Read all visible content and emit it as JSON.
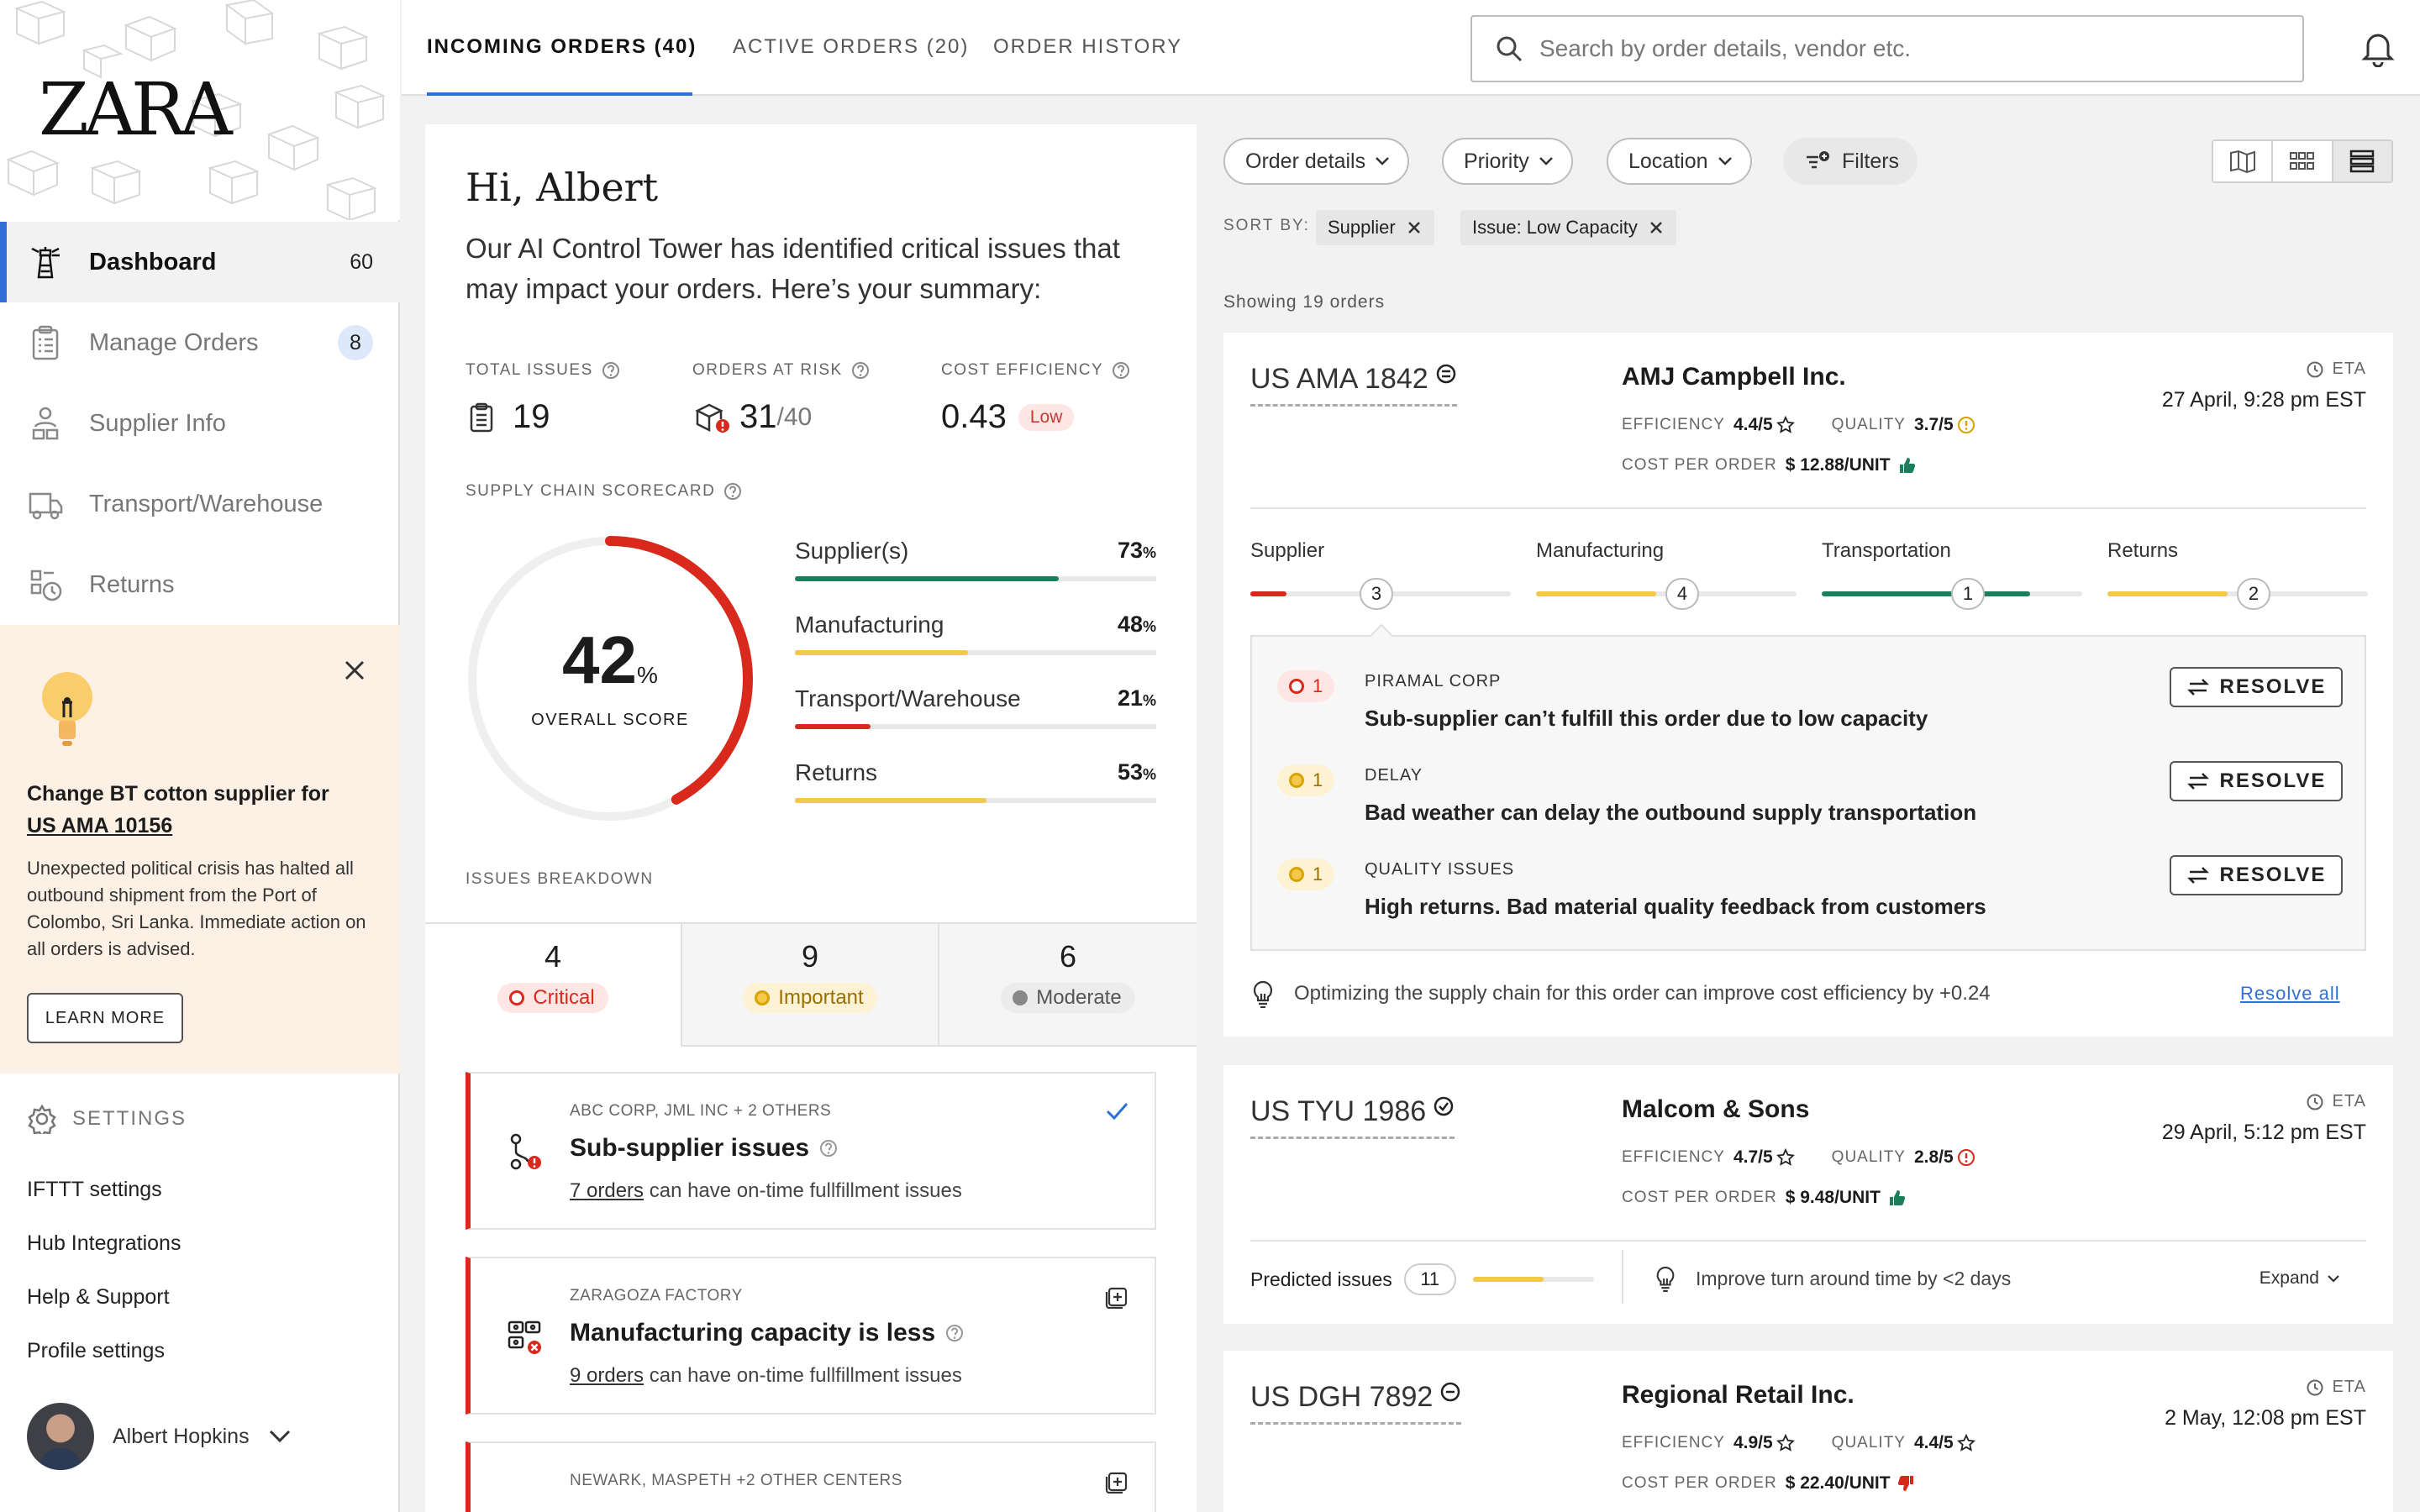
{
  "brand": {
    "logo": "ZARA"
  },
  "nav": [
    {
      "label": "Dashboard",
      "count": "60",
      "icon": "lighthouse-icon",
      "active": true
    },
    {
      "label": "Manage Orders",
      "count": "8",
      "icon": "clipboard-icon"
    },
    {
      "label": "Supplier Info",
      "count": "",
      "icon": "supplier-icon"
    },
    {
      "label": "Transport/Warehouse",
      "count": "",
      "icon": "truck-icon"
    },
    {
      "label": "Returns",
      "count": "",
      "icon": "returns-icon"
    }
  ],
  "alert": {
    "title": "Change BT cotton supplier for",
    "order_link": "US AMA 10156",
    "body": "Unexpected political crisis has halted all outbound shipment from the Port of Colombo, Sri Lanka. Immediate action on all orders is advised.",
    "button": "LEARN MORE"
  },
  "settings": {
    "heading": "SETTINGS",
    "links": [
      "IFTTT settings",
      "Hub Integrations",
      "Help & Support",
      "Profile settings"
    ]
  },
  "profile": {
    "name": "Albert Hopkins"
  },
  "tabs": [
    {
      "label": "INCOMING ORDERS (40)",
      "active": true
    },
    {
      "label": "ACTIVE ORDERS (20)"
    },
    {
      "label": "ORDER HISTORY"
    }
  ],
  "search": {
    "placeholder": "Search by order details, vendor etc."
  },
  "summary": {
    "greeting": "Hi, Albert",
    "subtitle": "Our AI Control Tower has identified critical issues that may impact your orders. Here’s your summary:",
    "kpis": {
      "total_issues_label": "TOTAL ISSUES",
      "total_issues": "19",
      "at_risk_label": "ORDERS AT RISK",
      "at_risk": "31",
      "at_risk_total": "/40",
      "cost_label": "COST EFFICIENCY",
      "cost": "0.43",
      "cost_badge": "Low"
    },
    "scorecard_label": "SUPPLY CHAIN SCORECARD",
    "overall_score": "42",
    "overall_unit": "%",
    "overall_label": "OVERALL SCORE",
    "overall_fraction": 0.42,
    "bars": [
      {
        "name": "Supplier(s)",
        "value": "73",
        "fraction": 0.73,
        "color": "#1b7f5c"
      },
      {
        "name": "Manufacturing",
        "value": "48",
        "fraction": 0.48,
        "color": "#f2c94c"
      },
      {
        "name": "Transport/Warehouse",
        "value": "21",
        "fraction": 0.21,
        "color": "#d9291c"
      },
      {
        "name": "Returns",
        "value": "53",
        "fraction": 0.53,
        "color": "#f2c94c"
      }
    ],
    "pct": "%",
    "issues_breakdown_label": "ISSUES BREAKDOWN",
    "breakdown": [
      {
        "count": "4",
        "label": "Critical",
        "color": "#d9291c",
        "bg": "#fde6e3"
      },
      {
        "count": "9",
        "label": "Important",
        "color": "#b8860b",
        "bg": "#fdf3d4"
      },
      {
        "count": "6",
        "label": "Moderate",
        "color": "#555555",
        "bg": "#ececec"
      }
    ],
    "issues": [
      {
        "meta": "ABC CORP, JML INC + 2 OTHERS",
        "title": "Sub-supplier issues",
        "link": "7 orders",
        "desc": " can have on-time fullfillment issues"
      },
      {
        "meta": "ZARAGOZA FACTORY",
        "title": "Manufacturing capacity is less",
        "link": "9 orders",
        "desc": " can have on-time fullfillment issues"
      },
      {
        "meta": "NEWARK, MASPETH +2 OTHER CENTERS",
        "title": "",
        "link": "",
        "desc": ""
      }
    ]
  },
  "orders_panel": {
    "chips": [
      "Order details",
      "Priority",
      "Location",
      "Filters"
    ],
    "sort_by_label": "SORT BY:",
    "sort_tags": [
      "Supplier",
      "Issue: Low Capacity"
    ],
    "showing": "Showing 19 orders",
    "eta_label": "ETA",
    "efficiency_label": "EFFICIENCY",
    "quality_label": "QUALITY",
    "cpo_label": "COST PER ORDER",
    "orders": [
      {
        "id": "US AMA 1842",
        "supplier": "AMJ Campbell Inc.",
        "efficiency": "4.4/5",
        "quality": "3.7/5",
        "cost": "$ 12.88/UNIT",
        "eta": "27 April, 9:28 pm EST",
        "stages": [
          {
            "name": "Supplier",
            "count": "3",
            "fraction": 0.14,
            "color": "#d9291c"
          },
          {
            "name": "Manufacturing",
            "count": "4",
            "fraction": 0.46,
            "color": "#f2c94c"
          },
          {
            "name": "Transportation",
            "count": "1",
            "fraction": 0.8,
            "color": "#1b7f5c"
          },
          {
            "name": "Returns",
            "count": "2",
            "fraction": 0.46,
            "color": "#f2c94c"
          }
        ],
        "issues": [
          {
            "count": "1",
            "category": "PIRAMAL CORP",
            "message": "Sub-supplier can’t fulfill this order due to low capacity",
            "button": "RESOLVE",
            "color": "#d9291c",
            "bg": "#fde6e3"
          },
          {
            "count": "1",
            "category": "DELAY",
            "message": "Bad weather can delay the outbound supply transportation",
            "button": "RESOLVE",
            "color": "#d9a400",
            "bg": "#fdf3d4"
          },
          {
            "count": "1",
            "category": "QUALITY ISSUES",
            "message": "High returns. Bad material quality feedback from customers",
            "button": "RESOLVE",
            "color": "#d9a400",
            "bg": "#fdf3d4"
          }
        ],
        "optimize": "Optimizing the supply chain for this order can improve cost efficiency by +0.24",
        "resolve_all": "Resolve all"
      },
      {
        "id": "US TYU 1986",
        "supplier": "Malcom & Sons",
        "efficiency": "4.7/5",
        "quality": "2.8/5",
        "cost": "$ 9.48/UNIT",
        "eta": "29 April, 5:12 pm EST",
        "predicted_label": "Predicted issues",
        "predicted": "11",
        "tip": "Improve turn around time by <2 days",
        "expand": "Expand"
      },
      {
        "id": "US DGH 7892",
        "supplier": "Regional Retail Inc.",
        "efficiency": "4.9/5",
        "quality": "4.4/5",
        "cost": "$ 22.40/UNIT",
        "eta": "2 May, 12:08 pm EST"
      }
    ]
  }
}
